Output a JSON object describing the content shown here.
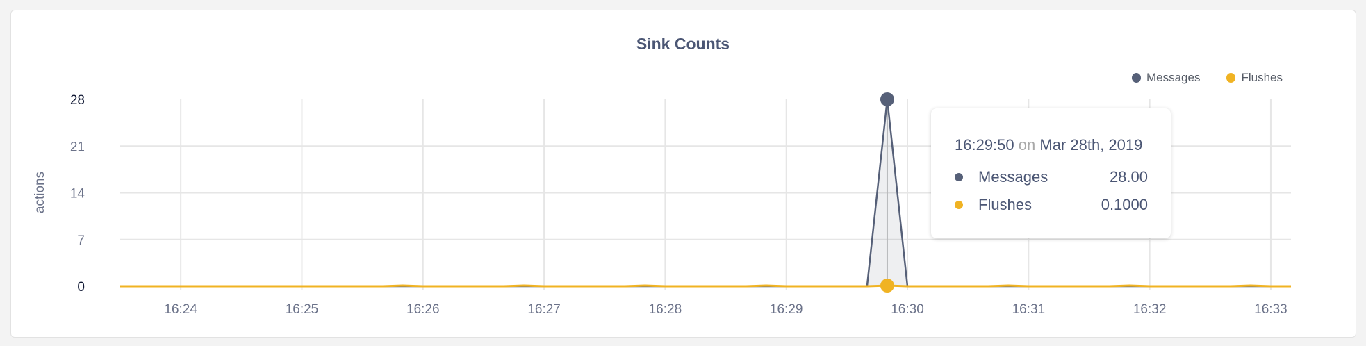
{
  "chart_data": {
    "type": "area",
    "title": "Sink Counts",
    "ylabel": "actions",
    "xlabel": "",
    "ylim": [
      0,
      28
    ],
    "yticks": [
      "0",
      "7",
      "14",
      "21",
      "28"
    ],
    "xlim": [
      "16:23:30",
      "16:33:10"
    ],
    "xticks": [
      "16:24",
      "16:25",
      "16:26",
      "16:27",
      "16:28",
      "16:29",
      "16:30",
      "16:31",
      "16:32",
      "16:33"
    ],
    "grid": true,
    "legend_position": "top-right",
    "x": [
      "16:23:30",
      "16:23:40",
      "16:23:50",
      "16:24:00",
      "16:24:10",
      "16:24:20",
      "16:24:30",
      "16:24:40",
      "16:24:50",
      "16:25:00",
      "16:25:10",
      "16:25:20",
      "16:25:30",
      "16:25:40",
      "16:25:50",
      "16:26:00",
      "16:26:10",
      "16:26:20",
      "16:26:30",
      "16:26:40",
      "16:26:50",
      "16:27:00",
      "16:27:10",
      "16:27:20",
      "16:27:30",
      "16:27:40",
      "16:27:50",
      "16:28:00",
      "16:28:10",
      "16:28:20",
      "16:28:30",
      "16:28:40",
      "16:28:50",
      "16:29:00",
      "16:29:10",
      "16:29:20",
      "16:29:30",
      "16:29:40",
      "16:29:50",
      "16:30:00",
      "16:30:10",
      "16:30:20",
      "16:30:30",
      "16:30:40",
      "16:30:50",
      "16:31:00",
      "16:31:10",
      "16:31:20",
      "16:31:30",
      "16:31:40",
      "16:31:50",
      "16:32:00",
      "16:32:10",
      "16:32:20",
      "16:32:30",
      "16:32:40",
      "16:32:50",
      "16:33:00",
      "16:33:10"
    ],
    "series": [
      {
        "name": "Messages",
        "color": "#566078",
        "values": [
          0,
          0,
          0,
          0,
          0,
          0,
          0,
          0,
          0,
          0,
          0,
          0,
          0,
          0,
          0,
          0,
          0,
          0,
          0,
          0,
          0,
          0,
          0,
          0,
          0,
          0,
          0,
          0,
          0,
          0,
          0,
          0,
          0,
          0,
          0,
          0,
          0,
          0,
          28,
          0,
          0,
          0,
          0,
          0,
          0,
          0,
          0,
          0,
          0,
          0,
          0,
          0,
          0,
          0,
          0,
          0,
          0,
          0,
          0
        ]
      },
      {
        "name": "Flushes",
        "color": "#f0b323",
        "values": [
          0,
          0,
          0,
          0,
          0,
          0,
          0,
          0,
          0,
          0,
          0,
          0,
          0,
          0,
          0.1,
          0,
          0,
          0,
          0,
          0,
          0.1,
          0,
          0,
          0,
          0,
          0,
          0.1,
          0,
          0,
          0,
          0,
          0,
          0.1,
          0,
          0,
          0,
          0,
          0,
          0.1,
          0,
          0,
          0,
          0,
          0,
          0.1,
          0,
          0,
          0,
          0,
          0,
          0.1,
          0,
          0,
          0,
          0,
          0,
          0.1,
          0,
          0
        ]
      }
    ],
    "tooltip": {
      "time": "16:29:50",
      "on": "on",
      "date": "Mar 28th, 2019",
      "rows": [
        {
          "label": "Messages",
          "value": "28.00",
          "color": "#566078"
        },
        {
          "label": "Flushes",
          "value": "0.1000",
          "color": "#f0b323"
        }
      ]
    }
  }
}
